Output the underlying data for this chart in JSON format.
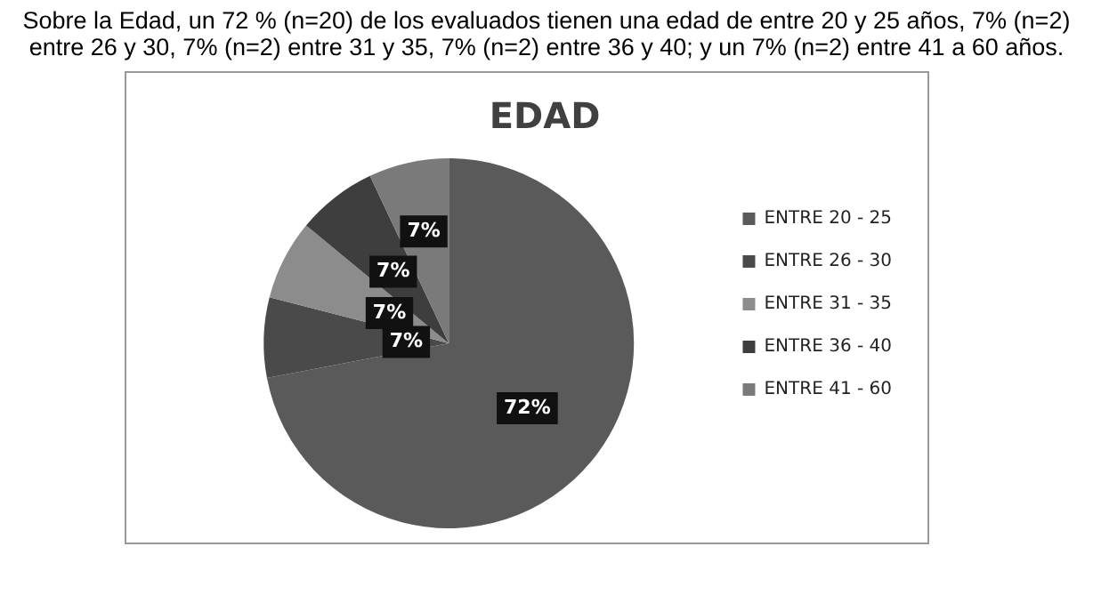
{
  "chart_data": {
    "type": "pie",
    "title": "EDAD",
    "categories": [
      "ENTRE 20 - 25",
      "ENTRE 26 - 30",
      "ENTRE 31 - 35",
      "ENTRE 36 - 40",
      "ENTRE 41 - 60"
    ],
    "values": [
      72,
      7,
      7,
      7,
      7
    ],
    "colors": [
      "#5a5a5a",
      "#4a4a4a",
      "#8c8c8c",
      "#3e3e3e",
      "#7a7a7a"
    ],
    "value_labels": [
      "72%",
      "7%",
      "7%",
      "7%",
      "7%"
    ],
    "legend": "right",
    "annotations": [
      "Sobre la Edad, un 72 % (n=20) de los evaluados tienen una edad de entre  20 y 25 años, 7% (n=2) entre 26 y 30, 7% (n=2)  entre 31 y 35, 7% (n=2)  entre 36 y 40; y un 7%  (n=2) entre 41 a 60 años."
    ]
  }
}
